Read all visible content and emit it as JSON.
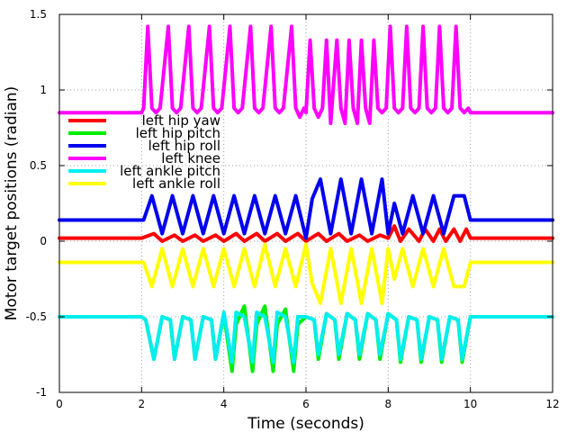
{
  "chart_data": {
    "type": "line",
    "title": "",
    "xlabel": "Time (seconds)",
    "ylabel": "Motor target positions (radian)",
    "xlim": [
      0,
      12
    ],
    "ylim": [
      -1,
      1.5
    ],
    "x_ticks": [
      0,
      2,
      4,
      6,
      8,
      10,
      12
    ],
    "x_tick_labels": [
      "0",
      "2",
      "4",
      "6",
      "8",
      "10",
      "12"
    ],
    "y_ticks": [
      -1,
      -0.5,
      0,
      0.5,
      1,
      1.5
    ],
    "y_tick_labels": [
      "-1",
      "-0.5",
      "0",
      "0.5",
      "1",
      "1.5"
    ],
    "grid": true,
    "legend_position": "left",
    "active_window": [
      2,
      10
    ],
    "series": [
      {
        "name": "left hip yaw",
        "color": "#ff0000",
        "rest": 0.02,
        "x": [
          2.0,
          2.3,
          2.5,
          2.8,
          3.0,
          3.3,
          3.5,
          3.8,
          4.0,
          4.3,
          4.5,
          4.8,
          5.0,
          5.3,
          5.5,
          5.8,
          6.0,
          6.3,
          6.5,
          6.8,
          7.0,
          7.3,
          7.5,
          7.8,
          8.0,
          8.15,
          8.3,
          8.5,
          8.75,
          8.9,
          9.1,
          9.25,
          9.4,
          9.6,
          9.75,
          9.9,
          10.0
        ],
        "y": [
          0.02,
          0.05,
          0.0,
          0.04,
          0.0,
          0.04,
          0.0,
          0.04,
          0.0,
          0.05,
          0.0,
          0.05,
          0.0,
          0.05,
          0.0,
          0.05,
          0.0,
          0.05,
          0.0,
          0.05,
          0.0,
          0.04,
          0.0,
          0.04,
          0.02,
          0.1,
          0.0,
          0.08,
          0.0,
          0.08,
          0.0,
          0.08,
          0.0,
          0.08,
          0.0,
          0.08,
          0.02
        ]
      },
      {
        "name": "left hip pitch",
        "color": "#00ee00",
        "rest": -0.5,
        "x": [
          2.0,
          2.1,
          2.3,
          2.5,
          2.7,
          2.8,
          3.0,
          3.2,
          3.3,
          3.5,
          3.7,
          3.8,
          4.0,
          4.2,
          4.3,
          4.5,
          4.7,
          4.8,
          5.0,
          5.2,
          5.3,
          5.5,
          5.7,
          5.8,
          6.0,
          6.2,
          6.3,
          6.5,
          6.7,
          6.8,
          7.0,
          7.2,
          7.3,
          7.5,
          7.7,
          7.8,
          8.0,
          8.2,
          8.3,
          8.5,
          8.7,
          8.8,
          9.0,
          9.2,
          9.3,
          9.5,
          9.7,
          9.8,
          10.0
        ],
        "y": [
          -0.5,
          -0.52,
          -0.78,
          -0.5,
          -0.52,
          -0.78,
          -0.5,
          -0.52,
          -0.78,
          -0.5,
          -0.52,
          -0.78,
          -0.48,
          -0.86,
          -0.55,
          -0.43,
          -0.86,
          -0.55,
          -0.43,
          -0.86,
          -0.55,
          -0.45,
          -0.86,
          -0.55,
          -0.5,
          -0.52,
          -0.78,
          -0.48,
          -0.52,
          -0.78,
          -0.48,
          -0.52,
          -0.78,
          -0.48,
          -0.52,
          -0.78,
          -0.48,
          -0.52,
          -0.8,
          -0.5,
          -0.52,
          -0.8,
          -0.5,
          -0.52,
          -0.8,
          -0.5,
          -0.52,
          -0.8,
          -0.5
        ]
      },
      {
        "name": "left hip roll",
        "color": "#0000ee",
        "rest": 0.14,
        "x": [
          2.0,
          2.05,
          2.25,
          2.5,
          2.75,
          3.0,
          3.25,
          3.5,
          3.75,
          4.0,
          4.25,
          4.5,
          4.75,
          5.0,
          5.25,
          5.5,
          5.75,
          6.0,
          6.15,
          6.35,
          6.6,
          6.85,
          7.1,
          7.35,
          7.6,
          7.85,
          8.0,
          8.15,
          8.35,
          8.6,
          8.85,
          9.1,
          9.35,
          9.6,
          9.85,
          10.0
        ],
        "y": [
          0.14,
          0.14,
          0.3,
          0.05,
          0.3,
          0.05,
          0.3,
          0.05,
          0.3,
          0.05,
          0.3,
          0.05,
          0.3,
          0.05,
          0.3,
          0.05,
          0.3,
          0.02,
          0.28,
          0.41,
          0.05,
          0.41,
          0.05,
          0.41,
          0.05,
          0.41,
          0.05,
          0.25,
          0.05,
          0.3,
          0.05,
          0.3,
          0.05,
          0.3,
          0.3,
          0.14
        ]
      },
      {
        "name": "left knee",
        "color": "#ff00ff",
        "rest": 0.85,
        "x": [
          2.0,
          2.05,
          2.15,
          2.25,
          2.35,
          2.45,
          2.65,
          2.75,
          2.85,
          2.95,
          3.15,
          3.25,
          3.35,
          3.45,
          3.65,
          3.75,
          3.85,
          3.95,
          4.15,
          4.25,
          4.35,
          4.45,
          4.65,
          4.75,
          4.85,
          4.95,
          5.15,
          5.25,
          5.35,
          5.45,
          5.65,
          5.75,
          5.85,
          5.95,
          6.0,
          6.1,
          6.2,
          6.3,
          6.4,
          6.5,
          6.6,
          6.75,
          6.85,
          6.95,
          7.05,
          7.15,
          7.25,
          7.35,
          7.45,
          7.55,
          7.65,
          7.75,
          7.85,
          7.95,
          8.05,
          8.15,
          8.25,
          8.35,
          8.45,
          8.55,
          8.65,
          8.75,
          8.85,
          8.95,
          9.05,
          9.15,
          9.25,
          9.35,
          9.45,
          9.55,
          9.65,
          9.75,
          9.85,
          9.95,
          10.0
        ],
        "y": [
          0.85,
          0.88,
          1.42,
          0.88,
          0.85,
          0.88,
          1.42,
          0.88,
          0.85,
          0.88,
          1.42,
          0.88,
          0.85,
          0.88,
          1.42,
          0.88,
          0.85,
          0.88,
          1.42,
          0.88,
          0.85,
          0.88,
          1.42,
          0.88,
          0.85,
          0.88,
          1.42,
          0.88,
          0.85,
          0.88,
          1.42,
          0.88,
          0.82,
          0.88,
          0.85,
          1.33,
          0.88,
          0.82,
          0.88,
          1.33,
          0.78,
          1.33,
          0.88,
          0.78,
          1.33,
          0.88,
          0.78,
          1.33,
          0.88,
          0.78,
          1.33,
          0.88,
          0.85,
          0.88,
          1.42,
          0.88,
          0.85,
          0.88,
          1.42,
          0.88,
          0.85,
          0.88,
          1.42,
          0.88,
          0.85,
          0.88,
          1.42,
          0.88,
          0.85,
          0.88,
          1.42,
          0.88,
          0.85,
          0.88,
          0.85
        ]
      },
      {
        "name": "left ankle pitch",
        "color": "#00eeee",
        "rest": -0.5,
        "x": [
          2.0,
          2.1,
          2.3,
          2.5,
          2.7,
          2.8,
          3.0,
          3.2,
          3.3,
          3.5,
          3.7,
          3.8,
          4.0,
          4.2,
          4.3,
          4.5,
          4.7,
          4.8,
          5.0,
          5.2,
          5.3,
          5.5,
          5.7,
          5.8,
          6.0,
          6.2,
          6.3,
          6.5,
          6.7,
          6.8,
          7.0,
          7.2,
          7.3,
          7.5,
          7.7,
          7.8,
          8.0,
          8.2,
          8.3,
          8.5,
          8.7,
          8.8,
          9.0,
          9.2,
          9.3,
          9.5,
          9.7,
          9.8,
          10.0
        ],
        "y": [
          -0.5,
          -0.52,
          -0.78,
          -0.5,
          -0.52,
          -0.78,
          -0.5,
          -0.52,
          -0.78,
          -0.5,
          -0.52,
          -0.78,
          -0.47,
          -0.8,
          -0.47,
          -0.5,
          -0.8,
          -0.47,
          -0.5,
          -0.8,
          -0.47,
          -0.5,
          -0.8,
          -0.5,
          -0.5,
          -0.52,
          -0.75,
          -0.48,
          -0.52,
          -0.75,
          -0.48,
          -0.52,
          -0.75,
          -0.48,
          -0.52,
          -0.75,
          -0.48,
          -0.52,
          -0.78,
          -0.5,
          -0.52,
          -0.78,
          -0.5,
          -0.52,
          -0.78,
          -0.5,
          -0.52,
          -0.78,
          -0.5
        ]
      },
      {
        "name": "left ankle roll",
        "color": "#ffff00",
        "rest": -0.14,
        "x": [
          2.0,
          2.05,
          2.25,
          2.5,
          2.75,
          3.0,
          3.25,
          3.5,
          3.75,
          4.0,
          4.25,
          4.5,
          4.75,
          5.0,
          5.25,
          5.5,
          5.75,
          6.0,
          6.15,
          6.35,
          6.6,
          6.85,
          7.1,
          7.35,
          7.6,
          7.85,
          8.0,
          8.15,
          8.35,
          8.6,
          8.85,
          9.1,
          9.35,
          9.6,
          9.85,
          10.0
        ],
        "y": [
          -0.14,
          -0.14,
          -0.3,
          -0.05,
          -0.3,
          -0.05,
          -0.3,
          -0.05,
          -0.3,
          -0.05,
          -0.3,
          -0.05,
          -0.3,
          -0.02,
          -0.3,
          -0.05,
          -0.3,
          -0.02,
          -0.28,
          -0.41,
          -0.05,
          -0.41,
          -0.05,
          -0.41,
          -0.05,
          -0.41,
          -0.05,
          -0.25,
          -0.05,
          -0.3,
          -0.05,
          -0.3,
          -0.05,
          -0.3,
          -0.3,
          -0.14
        ]
      }
    ]
  }
}
